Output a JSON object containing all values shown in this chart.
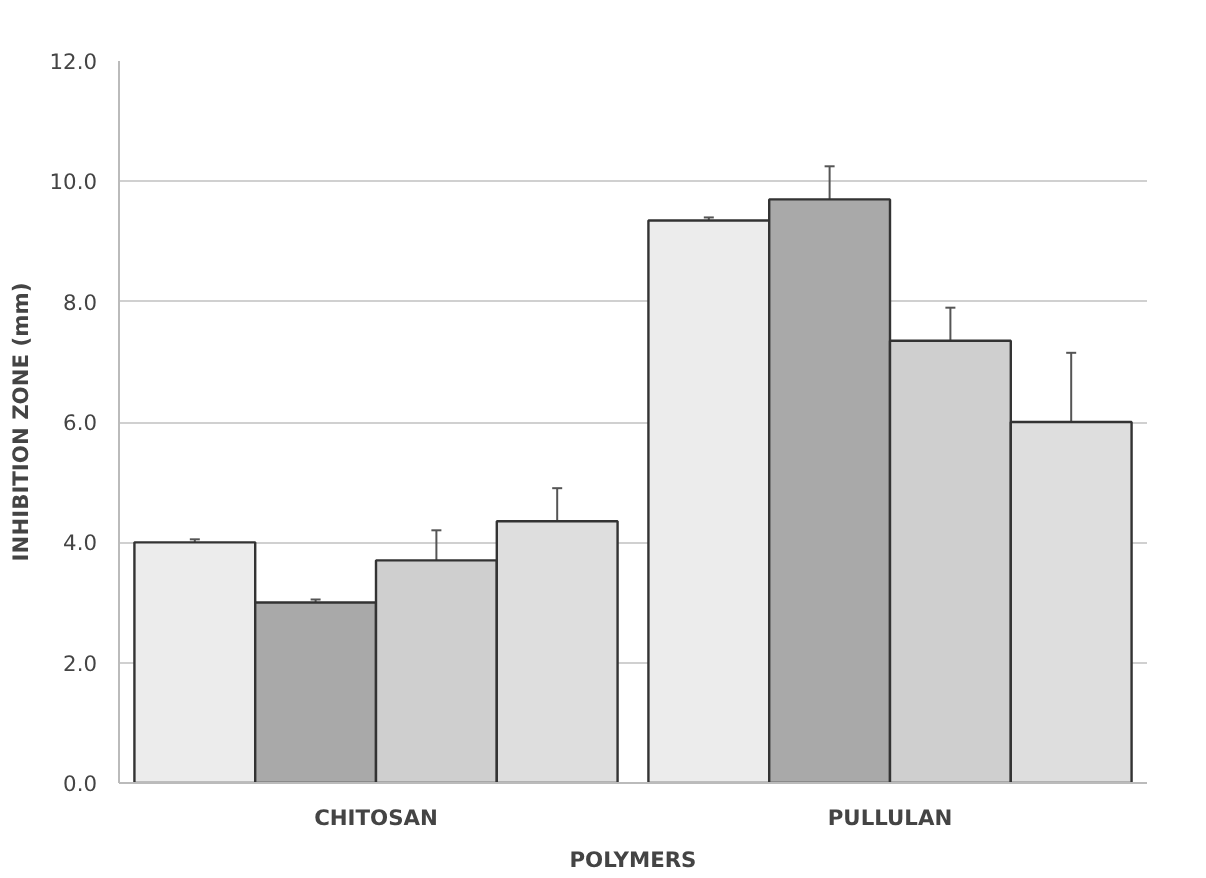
{
  "chart_data": {
    "type": "bar",
    "xlabel": "POLYMERS",
    "ylabel": "INHIBITION ZONE (mm)",
    "categories": [
      "CHITOSAN",
      "PULLULAN"
    ],
    "series": [
      {
        "color": "#ececec",
        "values": [
          4.0,
          9.35
        ],
        "errors": [
          0.05,
          0.05
        ]
      },
      {
        "color": "#a9a9a9",
        "values": [
          3.0,
          9.7
        ],
        "errors": [
          0.05,
          0.55
        ]
      },
      {
        "color": "#cfcfcf",
        "values": [
          3.7,
          7.35
        ],
        "errors": [
          0.5,
          0.55
        ]
      },
      {
        "color": "#dedede",
        "values": [
          4.35,
          6.0
        ],
        "errors": [
          0.55,
          1.15
        ]
      }
    ],
    "ylim": [
      0,
      12
    ],
    "yticks": [
      {
        "value": 0,
        "label": "0.0"
      },
      {
        "value": 2,
        "label": "2.0"
      },
      {
        "value": 4,
        "label": "4.0"
      },
      {
        "value": 6,
        "label": "6.0"
      },
      {
        "value": 8,
        "label": "8.0"
      },
      {
        "value": 10,
        "label": "10.0"
      },
      {
        "value": 12,
        "label": "12.0"
      }
    ],
    "grid": "y"
  }
}
